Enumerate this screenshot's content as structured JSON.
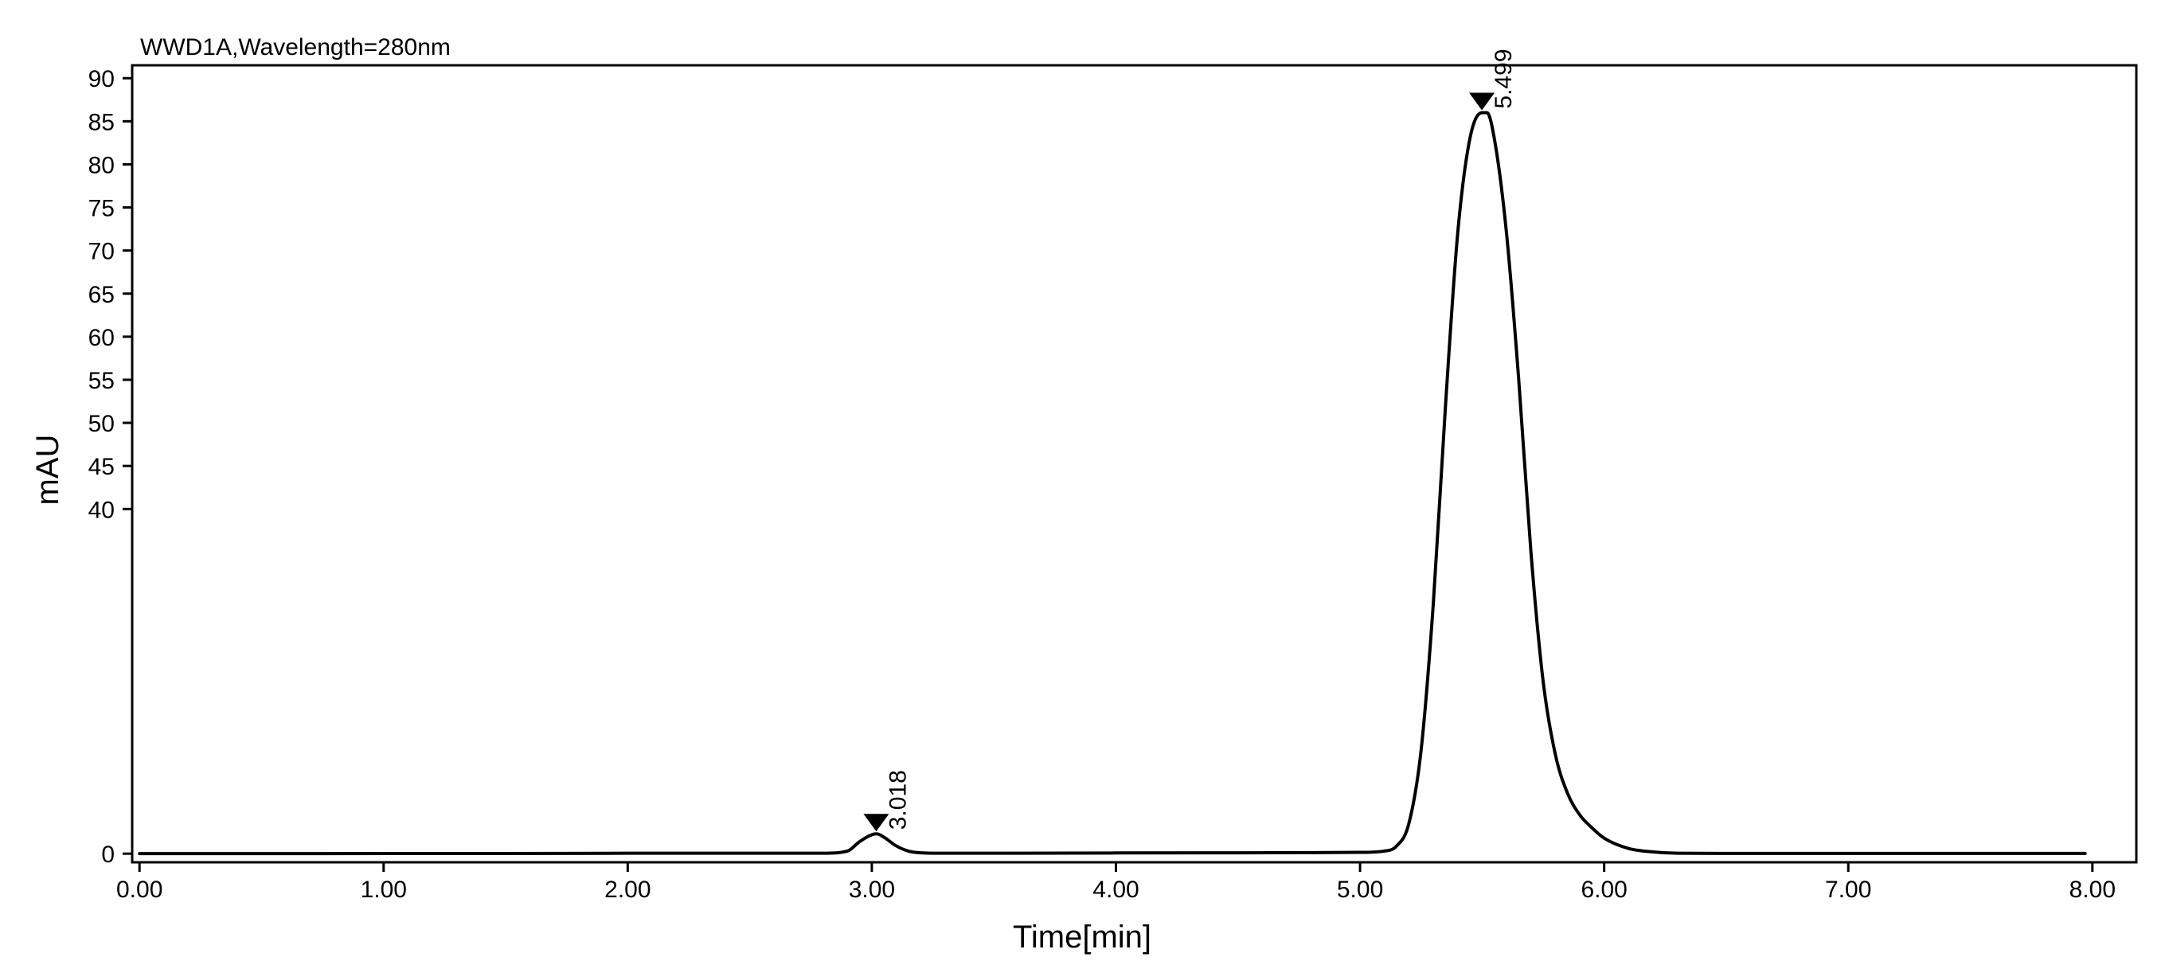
{
  "chart_data": {
    "type": "line",
    "title": "WWD1A,Wavelength=280nm",
    "xlabel": "Time[min]",
    "ylabel": "mAU",
    "xlim": [
      -0.03,
      8.18
    ],
    "ylim": [
      -1,
      91.5
    ],
    "x_ticks": [
      {
        "value": 0,
        "label": "0.00"
      },
      {
        "value": 1,
        "label": "1.00"
      },
      {
        "value": 2,
        "label": "2.00"
      },
      {
        "value": 3,
        "label": "3.00"
      },
      {
        "value": 4,
        "label": "4.00"
      },
      {
        "value": 5,
        "label": "5.00"
      },
      {
        "value": 6,
        "label": "6.00"
      },
      {
        "value": 7,
        "label": "7.00"
      },
      {
        "value": 8,
        "label": "8.00"
      }
    ],
    "y_ticks": [
      {
        "value": 0,
        "label": "0"
      },
      {
        "value": 40,
        "label": "40"
      },
      {
        "value": 45,
        "label": "45"
      },
      {
        "value": 50,
        "label": "50"
      },
      {
        "value": 55,
        "label": "55"
      },
      {
        "value": 60,
        "label": "60"
      },
      {
        "value": 65,
        "label": "65"
      },
      {
        "value": 70,
        "label": "70"
      },
      {
        "value": 75,
        "label": "75"
      },
      {
        "value": 80,
        "label": "80"
      },
      {
        "value": 85,
        "label": "85"
      },
      {
        "value": 90,
        "label": "90"
      }
    ],
    "grid": false,
    "line_color": "#000000",
    "series": [
      {
        "x": [
          0.0,
          0.5,
          1.0,
          1.5,
          2.0,
          2.5,
          2.8,
          2.9,
          2.95,
          3.0,
          3.02,
          3.05,
          3.1,
          3.15,
          3.2,
          3.3,
          3.5,
          4.0,
          4.5,
          5.0,
          5.1,
          5.15,
          5.2,
          5.25,
          5.3,
          5.35,
          5.4,
          5.45,
          5.5,
          5.52,
          5.55,
          5.6,
          5.65,
          5.7,
          5.75,
          5.8,
          5.85,
          5.9,
          5.95,
          6.0,
          6.1,
          6.2,
          6.3,
          6.5,
          7.0,
          7.5,
          7.97
        ],
        "y": [
          0.0,
          0.0,
          0.02,
          0.02,
          0.05,
          0.05,
          0.05,
          0.3,
          1.4,
          2.2,
          2.3,
          1.9,
          0.9,
          0.3,
          0.1,
          0.05,
          0.05,
          0.08,
          0.1,
          0.15,
          0.3,
          0.9,
          3.5,
          12.0,
          29.0,
          52.0,
          72.0,
          83.0,
          86.0,
          86.0,
          83.0,
          72.0,
          55.0,
          35.0,
          20.0,
          11.5,
          7.0,
          4.5,
          3.0,
          1.8,
          0.6,
          0.2,
          0.05,
          0.03,
          0.03,
          0.03,
          0.03
        ]
      }
    ],
    "peaks": [
      {
        "x": 3.018,
        "y": 2.3,
        "label": "3.018"
      },
      {
        "x": 5.499,
        "y": 86.0,
        "label": "5.499"
      }
    ]
  }
}
